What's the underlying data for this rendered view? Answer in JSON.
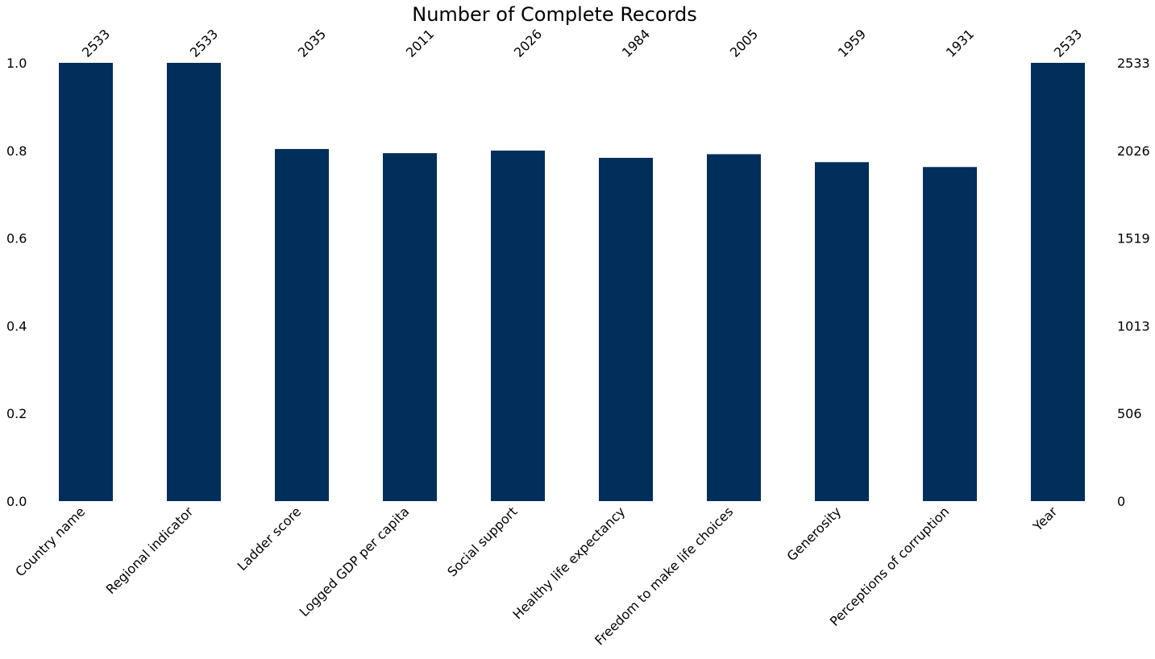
{
  "chart_data": {
    "type": "bar",
    "title": "Number of Complete Records",
    "xlabel": "",
    "ylabel": "",
    "total_rows": 2533,
    "categories": [
      "Country name",
      "Regional indicator",
      "Ladder score",
      "Logged GDP per capita",
      "Social support",
      "Healthy life expectancy",
      "Freedom to make life choices",
      "Generosity",
      "Perceptions of corruption",
      "Year"
    ],
    "counts": [
      2533,
      2533,
      2035,
      2011,
      2026,
      1984,
      2005,
      1959,
      1931,
      2533
    ],
    "left_axis": {
      "ylim": [
        0,
        1
      ],
      "ticks": [
        "0.0",
        "0.2",
        "0.4",
        "0.6",
        "0.8",
        "1.0"
      ]
    },
    "right_axis": {
      "ticks": [
        "0",
        "506",
        "1013",
        "1519",
        "2026",
        "2533"
      ]
    },
    "grid": false,
    "legend": "none",
    "bar_color": "#022e5b"
  }
}
